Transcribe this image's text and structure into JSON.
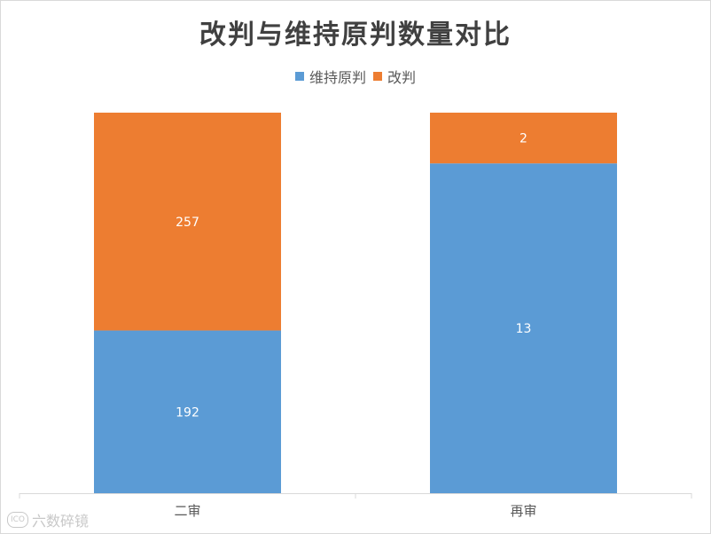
{
  "chart_data": {
    "type": "bar",
    "stacked": true,
    "title": "改判与维持原判数量对比",
    "categories": [
      "二审",
      "再审"
    ],
    "series": [
      {
        "name": "维持原判",
        "color": "#5b9bd5",
        "values": [
          192,
          13
        ]
      },
      {
        "name": "改判",
        "color": "#ed7d31",
        "values": [
          257,
          2
        ]
      }
    ],
    "normalized_percent": true,
    "legend_position": "top",
    "grid": false,
    "data_labels": true
  },
  "watermark": {
    "text": "六数碎镜",
    "logo": "ICO"
  }
}
